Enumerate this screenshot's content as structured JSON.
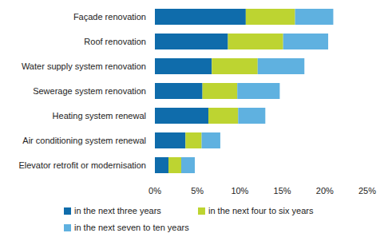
{
  "chart_data": {
    "type": "bar",
    "orientation": "horizontal",
    "stacked": true,
    "grid": false,
    "legend": "bottom",
    "categories": [
      "Façade renovation",
      "Roof renovation",
      "Water supply system renovation",
      "Sewerage system renovation",
      "Heating system renewal",
      "Air conditioning system renewal",
      "Elevator retrofit or modernisation"
    ],
    "series": [
      {
        "name": "in the next three years",
        "color": "#0f6cab",
        "values": [
          10.7,
          8.6,
          6.7,
          5.6,
          6.3,
          3.6,
          1.6
        ]
      },
      {
        "name": "in the next four to six years",
        "color": "#bdd431",
        "values": [
          5.8,
          6.5,
          5.4,
          4.1,
          3.5,
          1.9,
          1.5
        ]
      },
      {
        "name": "in the next seven to ten years",
        "color": "#5fb1e0",
        "values": [
          4.5,
          5.3,
          5.5,
          5.0,
          3.2,
          2.2,
          1.6
        ]
      }
    ],
    "xlim": [
      0,
      25
    ],
    "xticks": [
      {
        "value": 0,
        "label": "0%"
      },
      {
        "value": 5,
        "label": "5%"
      },
      {
        "value": 10,
        "label": "10%"
      },
      {
        "value": 15,
        "label": "15%"
      },
      {
        "value": 20,
        "label": "20%"
      },
      {
        "value": 25,
        "label": "25%"
      }
    ]
  }
}
